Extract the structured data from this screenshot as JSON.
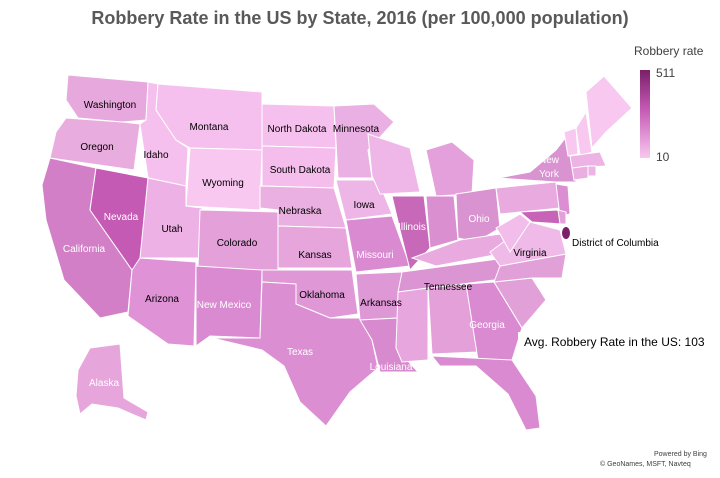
{
  "title": "Robbery Rate in the US by State, 2016 (per 100,000 population)",
  "legend": {
    "title": "Robbery rate",
    "max": "511",
    "min": "10"
  },
  "avg_text": "Avg. Robbery Rate in the US: 103",
  "attribution": {
    "line1": "Powered by Bing",
    "line2": "© GeoNames, MSFT, Navteq"
  },
  "colors": {
    "low": "#f8c8f0",
    "mid": "#dc8ed2",
    "high": "#c55ab4",
    "max": "#7b1f6a",
    "border": "#ffffff"
  },
  "labels": {
    "washington": "Washington",
    "oregon": "Oregon",
    "california": "California",
    "nevada": "Nevada",
    "idaho": "Idaho",
    "montana": "Montana",
    "wyoming": "Wyoming",
    "utah": "Utah",
    "arizona": "Arizona",
    "colorado": "Colorado",
    "new_mexico": "New Mexico",
    "north_dakota": "North Dakota",
    "south_dakota": "South Dakota",
    "nebraska": "Nebraska",
    "kansas": "Kansas",
    "oklahoma": "Oklahoma",
    "texas": "Texas",
    "minnesota": "Minnesota",
    "iowa": "Iowa",
    "missouri": "Missouri",
    "arkansas": "Arkansas",
    "louisiana": "Louisiana",
    "illinois": "Illinois",
    "ohio": "Ohio",
    "tennessee": "Tennessee",
    "georgia": "Georgia",
    "virginia": "Virginia",
    "new_york": "New York",
    "alaska": "Alaska",
    "dc": "District of Columbia"
  }
}
